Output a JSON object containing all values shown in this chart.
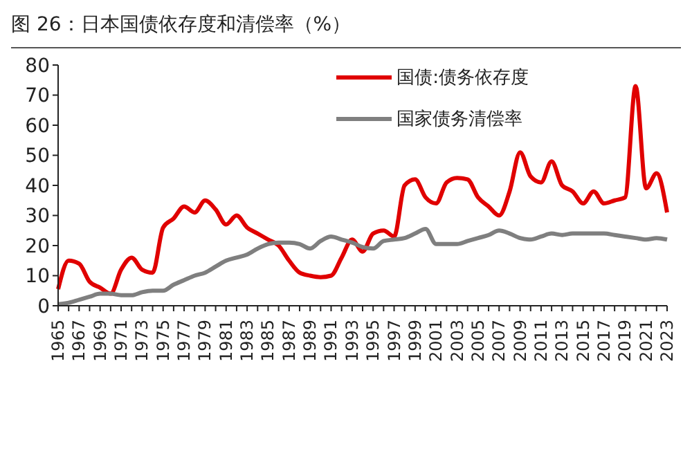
{
  "chart_data": {
    "type": "line",
    "title": "图 26：日本国债依存度和清偿率（%）",
    "categories": [
      "1965",
      null,
      "1967",
      null,
      "1969",
      null,
      "1971",
      null,
      "1973",
      null,
      "1975",
      null,
      "1977",
      null,
      "1979",
      null,
      "1981",
      null,
      "1983",
      null,
      "1985",
      null,
      "1987",
      null,
      "1989",
      null,
      "1991",
      null,
      "1993",
      null,
      "1995",
      null,
      "1997",
      null,
      "1999",
      null,
      "2001",
      null,
      "2003",
      null,
      "2005",
      null,
      "2007",
      null,
      "2009",
      null,
      "2011",
      null,
      "2013",
      null,
      "2015",
      null,
      "2017",
      null,
      "2019",
      null,
      "2021",
      null,
      "2023"
    ],
    "series": [
      {
        "name": "国债:债务依存度",
        "color": "#e00000",
        "values": [
          5.5,
          15,
          14,
          8,
          6,
          4,
          12,
          16,
          12,
          11,
          26,
          29,
          33,
          31,
          35,
          32,
          27,
          30,
          26,
          24,
          22,
          20,
          15,
          11,
          10,
          9.5,
          10,
          16,
          22,
          18,
          24,
          25,
          23,
          40,
          42,
          36,
          34,
          41,
          42.5,
          42,
          36,
          33,
          30,
          38,
          51,
          43,
          41,
          48,
          40,
          38,
          34,
          38,
          34,
          35,
          36,
          73,
          39,
          44,
          31
        ]
      },
      {
        "name": "国家债务清偿率",
        "color": "#7f7f7f",
        "values": [
          0.5,
          1,
          2,
          3,
          4,
          4,
          3.5,
          3.5,
          4.5,
          5,
          5,
          7,
          8.5,
          10,
          11,
          13,
          15,
          16,
          17,
          19,
          20.5,
          21,
          21,
          20.5,
          19,
          21.5,
          23,
          22,
          21,
          19.5,
          19,
          21.5,
          22,
          22.5,
          24,
          25.5,
          20.5,
          20.5,
          20.5,
          21.5,
          22.5,
          23.5,
          25,
          24,
          22.5,
          22,
          23,
          24,
          23.5,
          24,
          24,
          24,
          24,
          23.5,
          23,
          22.5,
          22,
          22.5,
          22
        ]
      }
    ],
    "ylim": [
      0,
      80
    ],
    "yticks": [
      0,
      10,
      20,
      30,
      40,
      50,
      60,
      70,
      80
    ],
    "grid": false,
    "legend": "top right",
    "marker": "none",
    "line_style": "solid"
  }
}
